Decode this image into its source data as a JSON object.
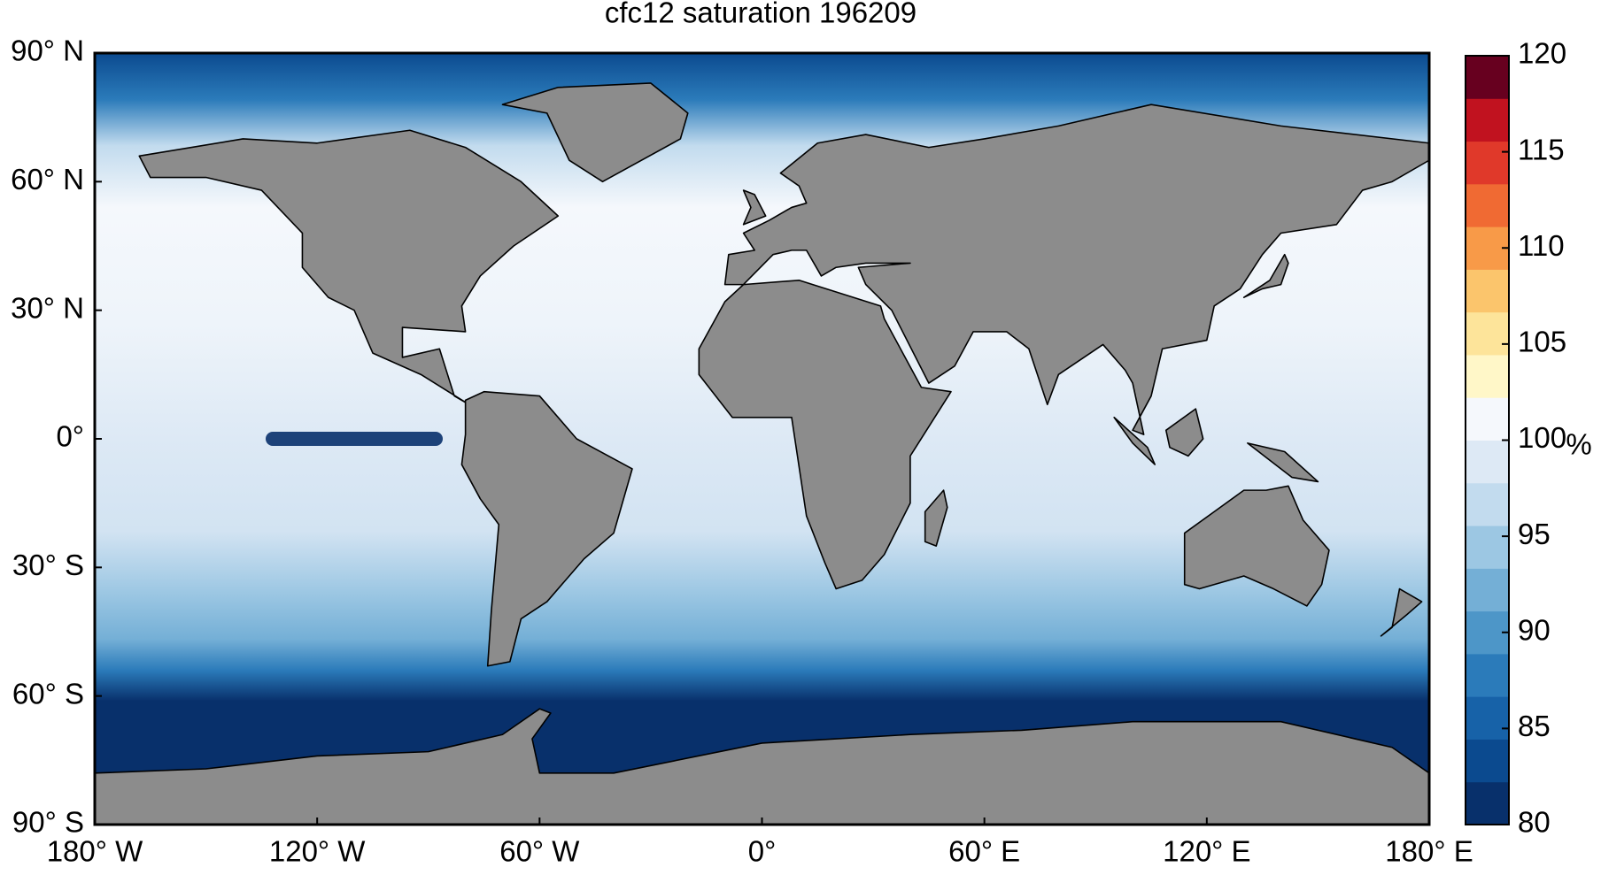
{
  "chart_data": {
    "type": "map",
    "title": "cfc12 saturation 196209",
    "xlim": [
      -180,
      180
    ],
    "xticks": [
      {
        "value": -180,
        "label": "180° W"
      },
      {
        "value": -120,
        "label": "120° W"
      },
      {
        "value": -60,
        "label": "60° W"
      },
      {
        "value": 0,
        "label": "0°"
      },
      {
        "value": 60,
        "label": "60° E"
      },
      {
        "value": 120,
        "label": "120° E"
      },
      {
        "value": 180,
        "label": "180° E"
      }
    ],
    "ylim": [
      -90,
      90
    ],
    "yticks": [
      {
        "value": 90,
        "label": "90° N"
      },
      {
        "value": 60,
        "label": "60° N"
      },
      {
        "value": 30,
        "label": "30° N"
      },
      {
        "value": 0,
        "label": "0°"
      },
      {
        "value": -30,
        "label": "30° S"
      },
      {
        "value": -60,
        "label": "60° S"
      },
      {
        "value": -90,
        "label": "90° S"
      }
    ],
    "colorbar": {
      "label": "%",
      "lim": [
        80,
        120
      ],
      "ticks": [
        80,
        85,
        90,
        95,
        100,
        105,
        110,
        115,
        120
      ],
      "colors": [
        "#08306b",
        "#0b4a8f",
        "#1762a8",
        "#2b7bba",
        "#4d96c8",
        "#74afd6",
        "#9cc7e3",
        "#c2dbee",
        "#dde9f5",
        "#f5f8fc",
        "#fff7c8",
        "#fde49a",
        "#fbc56c",
        "#f89a48",
        "#f06a33",
        "#e0392a",
        "#c1121f",
        "#67001f"
      ]
    }
  }
}
